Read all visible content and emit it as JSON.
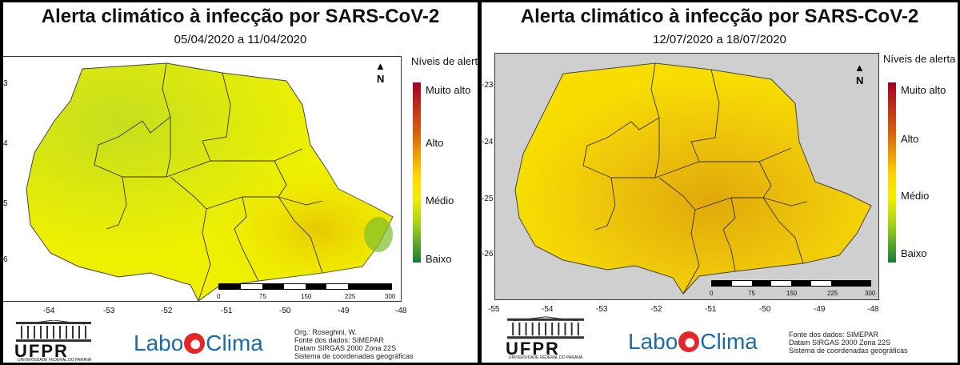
{
  "panels": [
    {
      "title": "Alerta climático à infecção por SARS-CoV-2",
      "period": "05/04/2020 a 11/04/2020",
      "x_ticks": [
        "-54",
        "-53",
        "-52",
        "-51",
        "-50",
        "-49",
        "-48"
      ],
      "y_ticks": [
        "3",
        "4",
        "5",
        "6"
      ],
      "legend_title": "Níveis de alerta",
      "legend_levels": [
        "Muito alto",
        "Alto",
        "Médio",
        "Baixo"
      ],
      "north": "N",
      "scale_labels": [
        "0",
        "75",
        "150",
        "225",
        "300"
      ],
      "credits": [
        "Org.: Roseghini, W.",
        "Fonte dos dados: SIMEPAR",
        "Datam SIRGAS 2000 Zona 22S",
        "Sistema de coordenadas geográficas"
      ]
    },
    {
      "title": "Alerta climático à infecção por SARS-CoV-2",
      "period": "12/07/2020 a 18/07/2020",
      "x_ticks": [
        "-55",
        "-54",
        "-53",
        "-52",
        "-51",
        "-50",
        "-49",
        "-48"
      ],
      "y_ticks": [
        "-23",
        "-24",
        "-25",
        "-26"
      ],
      "legend_title": "Níveis de alerta",
      "legend_levels": [
        "Muito alto",
        "Alto",
        "Médio",
        "Baixo"
      ],
      "north": "N",
      "scale_labels": [
        "0",
        "75",
        "150",
        "225",
        "300"
      ],
      "credits": [
        "Fonte dos dados: SIMEPAR",
        "Datam SIRGAS 2000 Zona 22S",
        "Sistema de coordenadas geográficas"
      ]
    }
  ],
  "logos": {
    "ufpr": "UFPR",
    "ufpr_sub": "UNIVERSIDADE FEDERAL DO PARANÁ",
    "labo_left": "Labo",
    "labo_right": "Clima"
  },
  "colors": {
    "muito_alto": "#a50026",
    "alto": "#ffd700",
    "medio": "#f4ee00",
    "baixo": "#1a7a3a"
  },
  "icons": [
    "north-arrow-icon"
  ]
}
